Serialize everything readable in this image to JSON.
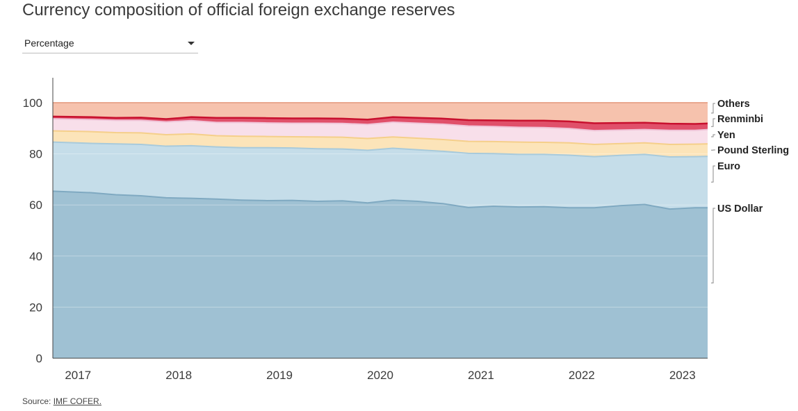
{
  "page": {
    "title": "Currency composition of official foreign exchange reserves",
    "dropdown": {
      "selected": "Percentage"
    },
    "source_prefix": "Source: ",
    "source_link": "IMF COFER."
  },
  "chart_data": {
    "type": "area",
    "title": "Currency composition of official foreign exchange reserves",
    "stacked": true,
    "xlabel": "",
    "ylabel": "",
    "x_ticks": [
      "2017",
      "2018",
      "2019",
      "2020",
      "2021",
      "2022",
      "2023"
    ],
    "x_range": [
      2016.75,
      2023.25
    ],
    "ylim": [
      0,
      100
    ],
    "y_ticks": [
      "0",
      "20",
      "40",
      "60",
      "80",
      "100"
    ],
    "grid": true,
    "legend_placement": "right",
    "x": [
      "2016Q4",
      "2017Q1",
      "2017Q2",
      "2017Q3",
      "2017Q4",
      "2018Q1",
      "2018Q2",
      "2018Q3",
      "2018Q4",
      "2019Q1",
      "2019Q2",
      "2019Q3",
      "2019Q4",
      "2020Q1",
      "2020Q2",
      "2020Q3",
      "2020Q4",
      "2021Q1",
      "2021Q2",
      "2021Q3",
      "2021Q4",
      "2022Q1",
      "2022Q2",
      "2022Q3",
      "2022Q4",
      "2023Q1",
      "2023Q2"
    ],
    "series": [
      {
        "name": "US Dollar",
        "color": "#9fc1d3",
        "line": "#7fa9c1",
        "values": [
          65.4,
          64.8,
          64.0,
          63.6,
          62.8,
          62.6,
          62.3,
          61.9,
          61.7,
          61.8,
          61.4,
          61.6,
          60.8,
          61.9,
          61.4,
          60.5,
          59.0,
          59.5,
          59.2,
          59.3,
          58.9,
          58.9,
          59.7,
          60.2,
          58.4,
          58.9,
          58.9
        ]
      },
      {
        "name": "Euro",
        "color": "#c5dde9",
        "line": "#a8cadb",
        "values": [
          19.2,
          19.3,
          19.9,
          20.1,
          20.2,
          20.6,
          20.4,
          20.5,
          20.7,
          20.5,
          20.6,
          20.3,
          20.6,
          20.3,
          20.2,
          20.5,
          21.2,
          20.6,
          20.6,
          20.5,
          20.6,
          20.0,
          19.7,
          19.6,
          20.4,
          20.0,
          20.1
        ]
      },
      {
        "name": "Pound Sterling",
        "color": "#fce4b9",
        "line": "#f5cf8a",
        "values": [
          4.4,
          4.6,
          4.4,
          4.5,
          4.5,
          4.6,
          4.4,
          4.5,
          4.4,
          4.4,
          4.6,
          4.6,
          4.6,
          4.4,
          4.5,
          4.6,
          4.7,
          4.7,
          4.8,
          4.7,
          4.8,
          4.8,
          4.6,
          4.5,
          4.9,
          4.9,
          4.9
        ]
      },
      {
        "name": "Yen",
        "color": "#f8dfea",
        "line": "#f0c4d8",
        "values": [
          4.7,
          4.7,
          4.8,
          4.9,
          5.0,
          5.2,
          5.2,
          5.4,
          5.3,
          5.3,
          5.4,
          5.4,
          5.5,
          5.8,
          5.9,
          6.0,
          6.0,
          5.9,
          5.8,
          5.8,
          5.6,
          5.4,
          5.3,
          5.2,
          5.5,
          5.4,
          5.6
        ]
      },
      {
        "name": "Renminbi",
        "color": "#e0506a",
        "line": "#c8102e",
        "values": [
          0.9,
          1.0,
          1.0,
          1.1,
          1.1,
          1.4,
          1.8,
          1.8,
          1.9,
          1.9,
          1.9,
          1.9,
          1.9,
          2.0,
          2.1,
          2.2,
          2.3,
          2.4,
          2.6,
          2.7,
          2.8,
          2.9,
          2.8,
          2.7,
          2.6,
          2.5,
          2.4
        ]
      },
      {
        "name": "Others",
        "color": "#f6c2ad",
        "line": "#e9a68e",
        "values": [
          5.4,
          5.6,
          5.9,
          5.8,
          6.4,
          5.6,
          5.9,
          5.9,
          6.0,
          6.1,
          6.1,
          6.2,
          6.6,
          5.6,
          5.9,
          6.2,
          6.8,
          6.9,
          7.0,
          7.0,
          7.3,
          8.0,
          7.9,
          7.8,
          8.2,
          8.3,
          8.1
        ]
      }
    ]
  }
}
